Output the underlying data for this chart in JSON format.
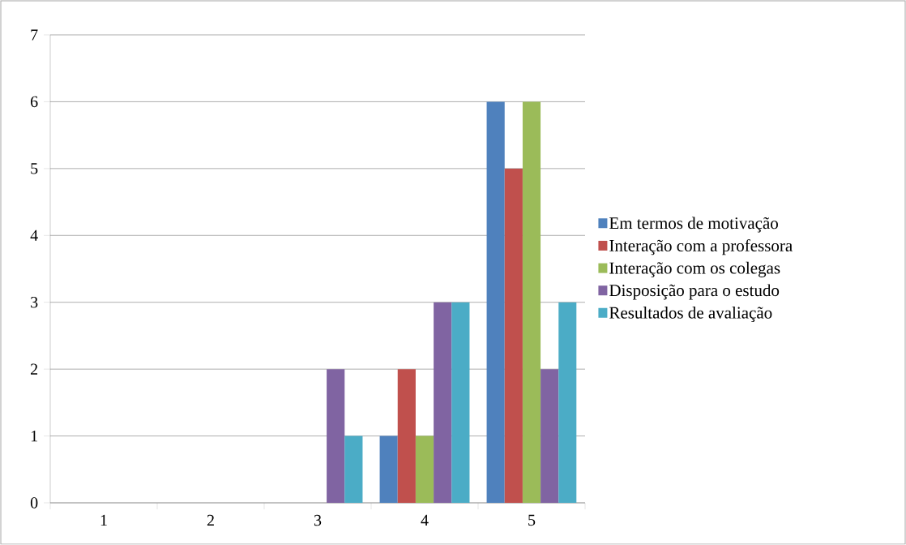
{
  "chart_data": {
    "type": "bar",
    "categories": [
      "1",
      "2",
      "3",
      "4",
      "5"
    ],
    "series": [
      {
        "name": "Em termos de motivação",
        "color": "#4f81bd",
        "values": [
          0,
          0,
          0,
          1,
          6
        ]
      },
      {
        "name": "Interação com a professora",
        "color": "#c0504d",
        "values": [
          0,
          0,
          0,
          2,
          5
        ]
      },
      {
        "name": "Interação com os colegas",
        "color": "#9bbb59",
        "values": [
          0,
          0,
          0,
          1,
          6
        ]
      },
      {
        "name": "Disposição para o estudo",
        "color": "#8064a2",
        "values": [
          0,
          0,
          2,
          3,
          2
        ]
      },
      {
        "name": "Resultados de avaliação",
        "color": "#4bacc6",
        "values": [
          0,
          0,
          1,
          3,
          3
        ]
      }
    ],
    "ylim": [
      0,
      7
    ],
    "yticks": [
      0,
      1,
      2,
      3,
      4,
      5,
      6,
      7
    ],
    "grid": "y",
    "legend": "right"
  }
}
